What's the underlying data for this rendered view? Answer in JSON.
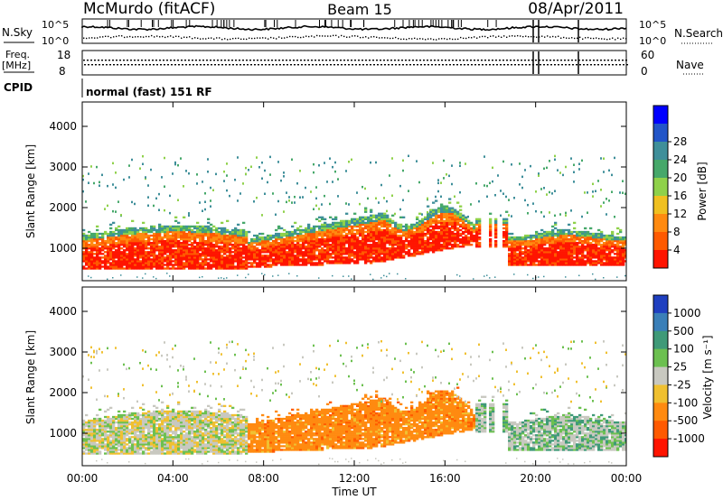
{
  "header": {
    "station": "McMurdo (fitACF)",
    "beam": "Beam 15",
    "date": "08/Apr/2011"
  },
  "status_panels": {
    "nsky_label": "N.Sky",
    "nsearch_label": "N.Search",
    "noise_ticks": [
      "10^5",
      "10^0"
    ],
    "freq_label_1": "Freq.",
    "freq_label_2": "[MHz]",
    "freq_ticks": [
      "18",
      "8"
    ],
    "nave_label": "Nave",
    "nave_ticks": [
      "60",
      "0"
    ],
    "cpid_label": "CPID",
    "cpid_value": "normal (fast) 151 RF"
  },
  "chart_data": [
    {
      "type": "heatmap",
      "name": "power",
      "ylabel": "Slant Range [km]",
      "yticks": [
        "1000",
        "2000",
        "3000",
        "4000"
      ],
      "ylim": [
        200,
        4600
      ],
      "colorbar_label": "Power [dB]",
      "colorbar_ticks": [
        "4",
        "8",
        "12",
        "16",
        "20",
        "24",
        "28"
      ],
      "colorbar_colors": [
        "#0000ff",
        "#2255c8",
        "#3f8f9a",
        "#46a86a",
        "#8fd14a",
        "#f0c020",
        "#ff8a10",
        "#ff5a00",
        "#ff1400"
      ]
    },
    {
      "type": "heatmap",
      "name": "velocity",
      "ylabel": "Slant Range [km]",
      "yticks": [
        "1000",
        "2000",
        "3000",
        "4000"
      ],
      "ylim": [
        200,
        4600
      ],
      "colorbar_label": "Velocity [m s⁻¹]",
      "colorbar_ticks": [
        "1000",
        "500",
        "100",
        "25",
        "-25",
        "-100",
        "-500",
        "-1000"
      ],
      "colorbar_colors": [
        "#1f3fc0",
        "#3a7fb8",
        "#3f9a78",
        "#6cc050",
        "#c8c8c0",
        "#f0c030",
        "#ff8a10",
        "#ff5a00",
        "#ff1400"
      ]
    }
  ],
  "x_axis": {
    "label": "Time UT",
    "ticks": [
      "00:00",
      "04:00",
      "08:00",
      "12:00",
      "16:00",
      "20:00",
      "00:00"
    ]
  }
}
